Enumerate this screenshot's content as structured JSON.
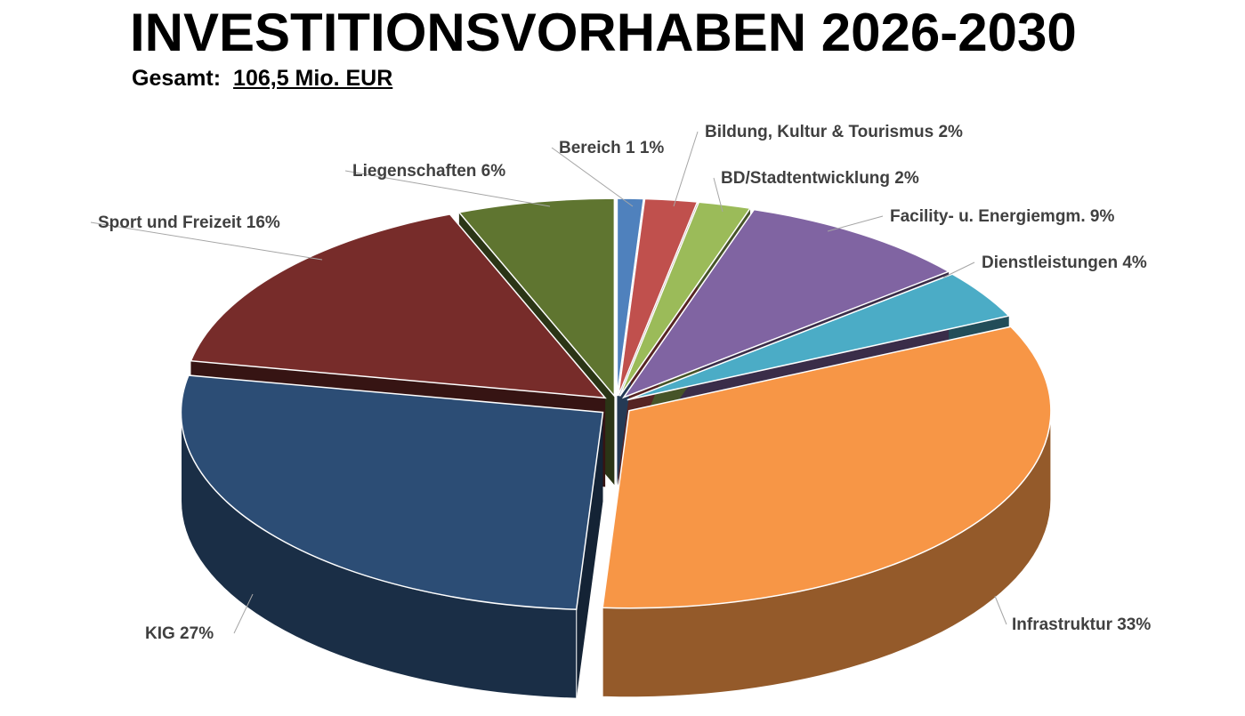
{
  "chart_data": {
    "type": "pie",
    "title": "INVESTITIONSVORHABEN 2026-2030",
    "subtitle_label": "Gesamt:",
    "subtitle_value": "106,5 Mio. EUR",
    "slices": [
      {
        "label": "Bereich 1",
        "value": 1,
        "text": "Bereich 1 1%",
        "color": "#4F81BD"
      },
      {
        "label": "Bildung, Kultur & Tourismus",
        "value": 2,
        "text": "Bildung, Kultur & Tourismus 2%",
        "color": "#C0504D"
      },
      {
        "label": "BD/Stadtentwicklung",
        "value": 2,
        "text": "BD/Stadtentwicklung 2%",
        "color": "#9BBB59"
      },
      {
        "label": "Facility- u. Energiemgm.",
        "value": 9,
        "text": "Facility- u. Energiemgm. 9%",
        "color": "#8064A2"
      },
      {
        "label": "Dienstleistungen",
        "value": 4,
        "text": "Dienstleistungen 4%",
        "color": "#4BACC6"
      },
      {
        "label": "Infrastruktur",
        "value": 33,
        "text": "Infrastruktur 33%",
        "color": "#F79646"
      },
      {
        "label": "KIG",
        "value": 27,
        "text": "KIG 27%",
        "color": "#2C4D75"
      },
      {
        "label": "Sport und Freizeit",
        "value": 16,
        "text": "Sport und Freizeit 16%",
        "color": "#772C2A"
      },
      {
        "label": "Liegenschaften",
        "value": 6,
        "text": "Liegenschaften 6%",
        "color": "#5F7530"
      }
    ]
  }
}
